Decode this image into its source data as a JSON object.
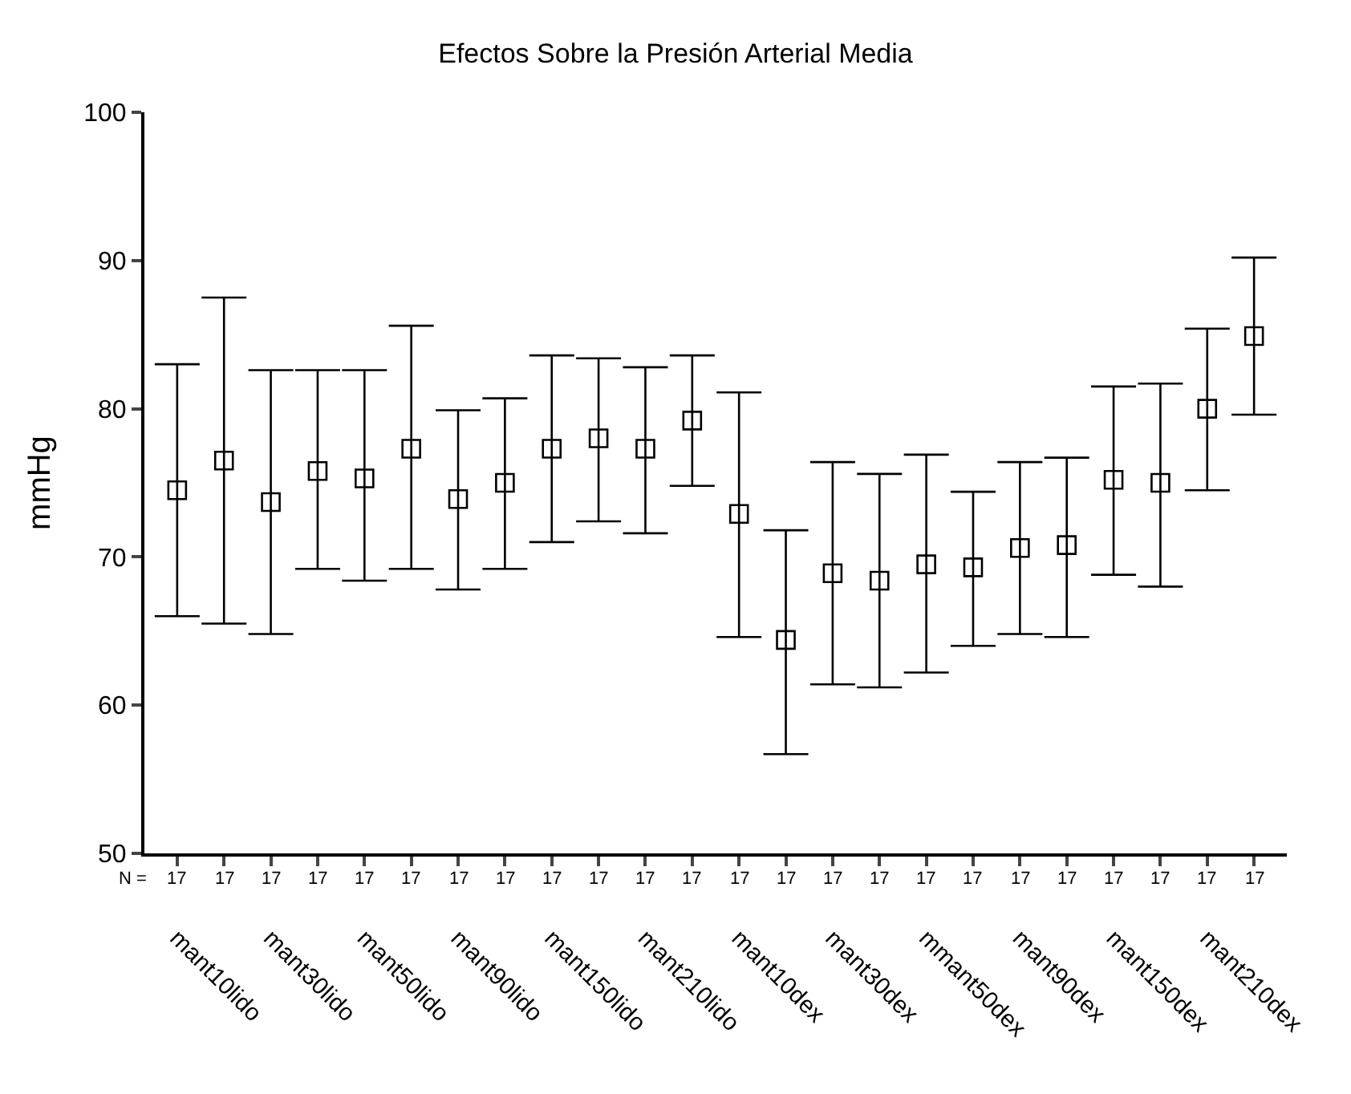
{
  "chart_data": {
    "type": "scatter",
    "title": "Efectos Sobre la Presión Arterial Media",
    "ylabel": "mmHg",
    "categories": [
      "mant10lido",
      null,
      "mant30lido",
      null,
      "mant50lido",
      null,
      "mant90lido",
      null,
      "mant150lido",
      null,
      "mant210lido",
      null,
      "mant10dex",
      null,
      "mant30dex",
      null,
      "mmant50dex",
      null,
      "mant90dex",
      null,
      "mant150dex",
      null,
      "mant210dex",
      null
    ],
    "values": [
      74.5,
      76.5,
      73.7,
      75.8,
      75.3,
      77.3,
      73.9,
      75.0,
      77.3,
      78.0,
      77.3,
      79.2,
      72.9,
      64.4,
      68.9,
      68.4,
      69.5,
      69.3,
      70.6,
      70.8,
      75.2,
      75.0,
      80.0,
      84.9
    ],
    "errors": [
      [
        66.0,
        83.0
      ],
      [
        65.5,
        87.5
      ],
      [
        64.8,
        82.6
      ],
      [
        69.2,
        82.6
      ],
      [
        68.4,
        82.6
      ],
      [
        69.2,
        85.6
      ],
      [
        67.8,
        79.9
      ],
      [
        69.2,
        80.7
      ],
      [
        71.0,
        83.6
      ],
      [
        72.4,
        83.4
      ],
      [
        71.6,
        82.8
      ],
      [
        74.8,
        83.6
      ],
      [
        64.6,
        81.1
      ],
      [
        56.7,
        71.8
      ],
      [
        61.4,
        76.4
      ],
      [
        61.2,
        75.6
      ],
      [
        62.2,
        76.9
      ],
      [
        64.0,
        74.4
      ],
      [
        64.8,
        76.4
      ],
      [
        64.6,
        76.7
      ],
      [
        68.8,
        81.5
      ],
      [
        68.0,
        81.7
      ],
      [
        74.5,
        85.4
      ],
      [
        79.6,
        90.2
      ]
    ],
    "color": "#000000",
    "marker": "square",
    "ylim": [
      50,
      100
    ],
    "yticks": [
      50,
      60,
      70,
      80,
      90,
      100
    ],
    "annotations": [
      "N =",
      "17",
      "17",
      "17",
      "17",
      "17",
      "17",
      "17",
      "17",
      "17",
      "17",
      "17",
      "17",
      "17",
      "17",
      "17",
      "17",
      "17",
      "17",
      "17",
      "17",
      "17",
      "17",
      "17",
      "17"
    ]
  }
}
